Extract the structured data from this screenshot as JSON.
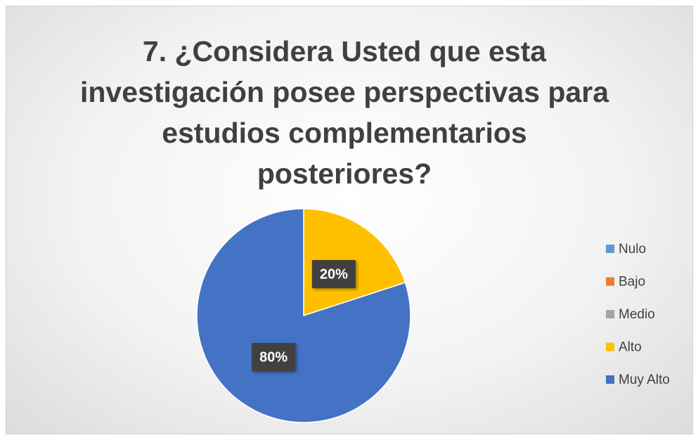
{
  "chart_data": {
    "type": "pie",
    "title": "7. ¿Considera Usted que esta investigación posee perspectivas para estudios complementarios posteriores?",
    "categories": [
      "Nulo",
      "Bajo",
      "Medio",
      "Alto",
      "Muy Alto"
    ],
    "values": [
      0,
      0,
      0,
      20,
      80
    ],
    "value_labels": [
      null,
      null,
      null,
      "20%",
      "80%"
    ],
    "colors": [
      "#5b9bd5",
      "#ed7d31",
      "#a5a5a5",
      "#ffc000",
      "#4472c4"
    ],
    "legend": "right"
  }
}
